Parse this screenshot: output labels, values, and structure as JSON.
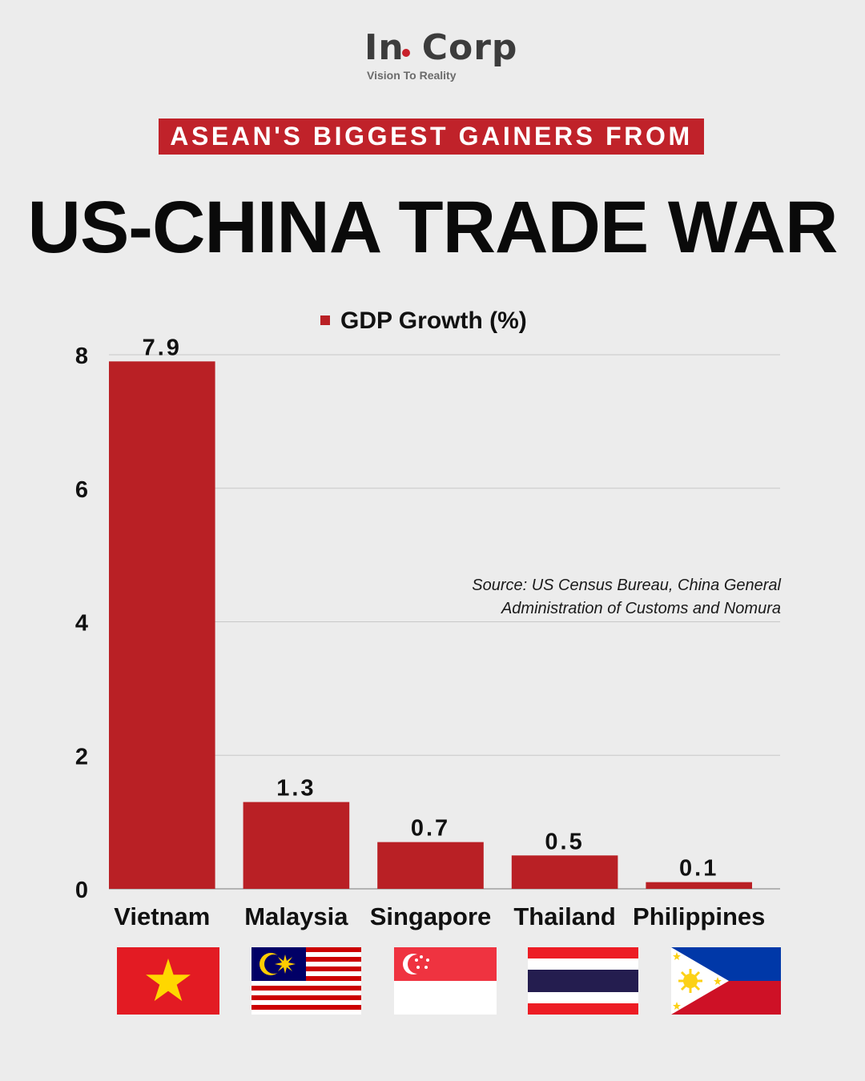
{
  "brand": {
    "name_left": "In",
    "name_right": "Corp",
    "tagline": "Vision To Reality"
  },
  "header": {
    "subtitle": "ASEAN'S BIGGEST GAINERS FROM",
    "title": "US-CHINA TRADE WAR"
  },
  "source": {
    "line1": "Source: US Census Bureau, China General",
    "line2": "Administration of Customs and Nomura"
  },
  "colors": {
    "bar": "#b92025",
    "accent": "#c0222a",
    "background": "#ececec",
    "grid": "#c8c8c8"
  },
  "flags": [
    {
      "country": "Vietnam",
      "icon": "vietnam-flag-icon"
    },
    {
      "country": "Malaysia",
      "icon": "malaysia-flag-icon"
    },
    {
      "country": "Singapore",
      "icon": "singapore-flag-icon"
    },
    {
      "country": "Thailand",
      "icon": "thailand-flag-icon"
    },
    {
      "country": "Philippines",
      "icon": "philippines-flag-icon"
    }
  ],
  "chart_data": {
    "type": "bar",
    "categories": [
      "Vietnam",
      "Malaysia",
      "Singapore",
      "Thailand",
      "Philippines"
    ],
    "series": [
      {
        "name": "GDP Growth (%)",
        "values": [
          7.9,
          1.3,
          0.7,
          0.5,
          0.1
        ]
      }
    ],
    "data_labels": [
      "7.9",
      "1.3",
      "0.7",
      "0.5",
      "0.1"
    ],
    "ylim": [
      0,
      8
    ],
    "yticks": [
      0,
      2,
      4,
      6,
      8
    ],
    "grid": true,
    "legend": "top-center"
  }
}
